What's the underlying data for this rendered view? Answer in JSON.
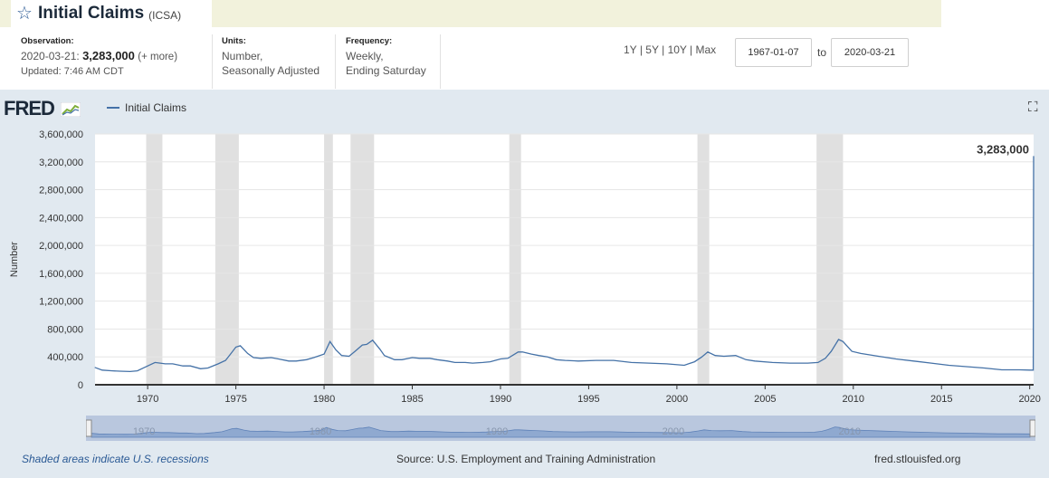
{
  "header": {
    "title": "Initial Claims",
    "series_code": "(ICSA)",
    "observation_label": "Observation:",
    "observation_date": "2020-03-21:",
    "observation_value": "3,283,000",
    "observation_more": "(+ more)",
    "updated": "Updated: 7:46 AM CDT",
    "units_label": "Units:",
    "units_line1": "Number,",
    "units_line2": "Seasonally Adjusted",
    "frequency_label": "Frequency:",
    "frequency_line1": "Weekly,",
    "frequency_line2": "Ending Saturday"
  },
  "controls": {
    "range_1y": "1Y",
    "range_5y": "5Y",
    "range_10y": "10Y",
    "range_max": "Max",
    "separator": "|",
    "start_date": "1967-01-07",
    "to_label": "to",
    "end_date": "2020-03-21"
  },
  "graph": {
    "logo": "FRED",
    "legend_label": "Initial Claims",
    "line_color": "#4572a7",
    "recession_color": "#e0e0e0",
    "navigator_labels": [
      "1970",
      "1980",
      "1990",
      "2000",
      "2010"
    ]
  },
  "chart_data": {
    "type": "line",
    "ylabel": "Number",
    "xlim": [
      "1967-01-07",
      "2020-03-21"
    ],
    "ylim": [
      0,
      3600000
    ],
    "y_ticks": [
      0,
      400000,
      800000,
      1200000,
      1600000,
      2000000,
      2400000,
      2800000,
      3200000,
      3600000
    ],
    "y_tick_labels": [
      "0",
      "400,000",
      "800,000",
      "1,200,000",
      "1,600,000",
      "2,000,000",
      "2,400,000",
      "2,800,000",
      "3,200,000",
      "3,600,000"
    ],
    "x_ticks": [
      "1970",
      "1975",
      "1980",
      "1985",
      "1990",
      "1995",
      "2000",
      "2005",
      "2010",
      "2015",
      "2020"
    ],
    "last_value_label": "3,283,000",
    "recessions": [
      [
        "1969-12",
        "1970-11"
      ],
      [
        "1973-11",
        "1975-03"
      ],
      [
        "1980-01",
        "1980-07"
      ],
      [
        "1981-07",
        "1982-11"
      ],
      [
        "1990-07",
        "1991-03"
      ],
      [
        "2001-03",
        "2001-11"
      ],
      [
        "2007-12",
        "2009-06"
      ]
    ],
    "series": [
      {
        "name": "Initial Claims",
        "x": [
          "1967-01",
          "1967-06",
          "1968-01",
          "1968-06",
          "1969-01",
          "1969-06",
          "1970-01",
          "1970-06",
          "1971-01",
          "1971-06",
          "1972-01",
          "1972-06",
          "1973-01",
          "1973-06",
          "1974-01",
          "1974-06",
          "1974-09",
          "1975-01",
          "1975-04",
          "1975-09",
          "1976-01",
          "1976-06",
          "1977-01",
          "1977-06",
          "1978-01",
          "1978-06",
          "1979-01",
          "1979-06",
          "1980-01",
          "1980-05",
          "1980-09",
          "1981-01",
          "1981-06",
          "1981-10",
          "1982-03",
          "1982-06",
          "1982-10",
          "1983-03",
          "1983-06",
          "1984-01",
          "1984-06",
          "1985-01",
          "1985-06",
          "1986-01",
          "1986-06",
          "1987-01",
          "1987-06",
          "1988-01",
          "1988-06",
          "1989-01",
          "1989-06",
          "1990-01",
          "1990-06",
          "1991-01",
          "1991-04",
          "1991-10",
          "1992-03",
          "1992-09",
          "1993-03",
          "1993-09",
          "1994-06",
          "1995-06",
          "1996-06",
          "1997-06",
          "1998-06",
          "1999-06",
          "2000-06",
          "2001-01",
          "2001-06",
          "2001-10",
          "2002-03",
          "2002-09",
          "2003-05",
          "2003-12",
          "2004-06",
          "2005-06",
          "2006-06",
          "2007-06",
          "2008-01",
          "2008-06",
          "2008-10",
          "2009-03",
          "2009-06",
          "2009-12",
          "2010-06",
          "2011-06",
          "2012-06",
          "2013-06",
          "2014-06",
          "2015-06",
          "2016-06",
          "2017-06",
          "2018-06",
          "2019-06",
          "2020-01",
          "2020-03-14",
          "2020-03-21"
        ],
        "values": [
          250000,
          210000,
          200000,
          195000,
          190000,
          200000,
          270000,
          320000,
          300000,
          300000,
          270000,
          270000,
          230000,
          240000,
          300000,
          350000,
          430000,
          540000,
          560000,
          450000,
          390000,
          380000,
          390000,
          370000,
          340000,
          340000,
          360000,
          390000,
          440000,
          620000,
          500000,
          420000,
          410000,
          480000,
          570000,
          580000,
          640000,
          510000,
          420000,
          360000,
          360000,
          390000,
          380000,
          380000,
          360000,
          340000,
          320000,
          320000,
          310000,
          320000,
          330000,
          370000,
          380000,
          470000,
          470000,
          440000,
          420000,
          400000,
          360000,
          350000,
          340000,
          350000,
          350000,
          320000,
          310000,
          300000,
          280000,
          330000,
          400000,
          470000,
          420000,
          410000,
          420000,
          360000,
          340000,
          320000,
          310000,
          310000,
          320000,
          380000,
          480000,
          650000,
          620000,
          480000,
          450000,
          410000,
          370000,
          340000,
          310000,
          280000,
          260000,
          240000,
          215000,
          215000,
          210000,
          211000,
          3283000
        ]
      }
    ]
  },
  "footer": {
    "recession_note": "Shaded areas indicate U.S. recessions",
    "source": "Source: U.S. Employment and Training Administration",
    "site": "fred.stlouisfed.org"
  }
}
